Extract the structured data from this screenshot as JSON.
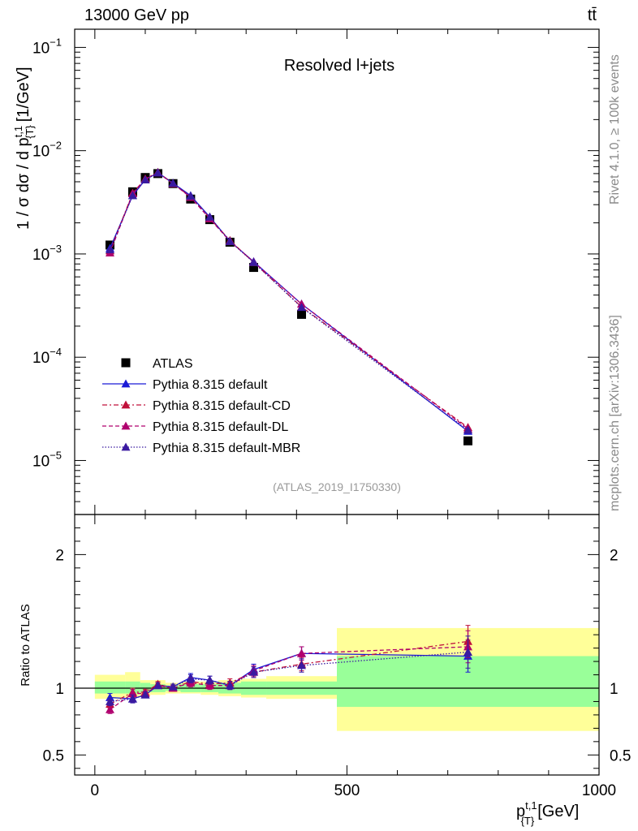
{
  "header": {
    "energy_label": "13000 GeV pp",
    "process_label": "tt̄",
    "side_rivet": "Rivet 4.1.0, ≥ 100k events",
    "side_mcplots": "mcplots.cern.ch [arXiv:1306.3436]"
  },
  "chart_data": {
    "type": "scatter",
    "title": "Resolved l+jets",
    "analysis_tag": "(ATLAS_2019_I1750330)",
    "xlabel_main": "p",
    "xlabel_sup": "t,1",
    "xlabel_sub": "{T}",
    "xlabel_unit": "[GeV]",
    "ylabel_main_prefix": "1 / σ dσ / d p",
    "ylabel_main_sup": "t,1",
    "ylabel_main_sub": "{T}",
    "ylabel_main_unit": "[1/GeV]",
    "ylabel_ratio": "Ratio to ATLAS",
    "xlim": [
      -40,
      1000
    ],
    "ylim_main": [
      3e-06,
      0.15
    ],
    "ylim_ratio": [
      0.35,
      2.3
    ],
    "yscale_main": "log",
    "x_ticks": [
      {
        "value": 0,
        "label": "0"
      },
      {
        "value": 500,
        "label": "500"
      },
      {
        "value": 1000,
        "label": "1000"
      }
    ],
    "y_ticks_main": [
      {
        "value": 0.1,
        "base": "10",
        "exp": "−1"
      },
      {
        "value": 0.01,
        "base": "10",
        "exp": "−2"
      },
      {
        "value": 0.001,
        "base": "10",
        "exp": "−3"
      },
      {
        "value": 0.0001,
        "base": "10",
        "exp": "−4"
      },
      {
        "value": 1e-05,
        "base": "10",
        "exp": "−5"
      }
    ],
    "y_ticks_ratio": [
      {
        "value": 0.5,
        "label": "0.5"
      },
      {
        "value": 1,
        "label": "1"
      },
      {
        "value": 2,
        "label": "2"
      }
    ],
    "bins": [
      {
        "lo": 0,
        "hi": 60,
        "x": 30
      },
      {
        "lo": 60,
        "hi": 90,
        "x": 75
      },
      {
        "lo": 90,
        "hi": 110,
        "x": 100
      },
      {
        "lo": 110,
        "hi": 140,
        "x": 125
      },
      {
        "lo": 140,
        "hi": 170,
        "x": 155
      },
      {
        "lo": 170,
        "hi": 210,
        "x": 190
      },
      {
        "lo": 210,
        "hi": 245,
        "x": 228
      },
      {
        "lo": 245,
        "hi": 290,
        "x": 268
      },
      {
        "lo": 290,
        "hi": 340,
        "x": 315
      },
      {
        "lo": 340,
        "hi": 480,
        "x": 410
      },
      {
        "lo": 480,
        "hi": 1000,
        "x": 740
      }
    ],
    "data": {
      "name": "ATLAS",
      "values": [
        0.00122,
        0.004,
        0.0055,
        0.006,
        0.0048,
        0.0034,
        0.00215,
        0.0013,
        0.00074,
        0.00026,
        1.55e-05
      ],
      "band_stat": [
        [
          0.96,
          1.05
        ],
        [
          0.96,
          1.05
        ],
        [
          0.97,
          1.04
        ],
        [
          0.97,
          1.03
        ],
        [
          0.98,
          1.02
        ],
        [
          0.97,
          1.03
        ],
        [
          0.97,
          1.03
        ],
        [
          0.96,
          1.04
        ],
        [
          0.95,
          1.05
        ],
        [
          0.95,
          1.05
        ],
        [
          0.86,
          1.24
        ]
      ],
      "band_total": [
        [
          0.92,
          1.1
        ],
        [
          0.93,
          1.12
        ],
        [
          0.94,
          1.06
        ],
        [
          0.95,
          1.06
        ],
        [
          0.96,
          1.04
        ],
        [
          0.96,
          1.05
        ],
        [
          0.95,
          1.05
        ],
        [
          0.94,
          1.06
        ],
        [
          0.93,
          1.07
        ],
        [
          0.92,
          1.09
        ],
        [
          0.68,
          1.45
        ]
      ],
      "color": "#000000"
    },
    "series": [
      {
        "name": "Pythia 8.315 default",
        "color": "#1a1ad6",
        "dash": "",
        "ratios": [
          0.93,
          0.92,
          0.95,
          1.02,
          1.01,
          1.08,
          1.06,
          1.02,
          1.14,
          1.26,
          1.24
        ],
        "ratio_err": [
          0.03,
          0.03,
          0.02,
          0.02,
          0.02,
          0.03,
          0.03,
          0.03,
          0.04,
          0.05,
          0.12
        ]
      },
      {
        "name": "Pythia 8.315 default-CD",
        "color": "#c0103a",
        "dash": "6,3,2,3",
        "ratios": [
          0.88,
          0.97,
          0.97,
          1.03,
          1.0,
          1.05,
          1.03,
          1.04,
          1.12,
          1.18,
          1.35
        ],
        "ratio_err": [
          0.03,
          0.03,
          0.02,
          0.02,
          0.02,
          0.03,
          0.03,
          0.03,
          0.04,
          0.05,
          0.12
        ]
      },
      {
        "name": "Pythia 8.315 default-DL",
        "color": "#b0006e",
        "dash": "5,3",
        "ratios": [
          0.84,
          0.96,
          0.96,
          1.02,
          1.0,
          1.04,
          1.02,
          1.02,
          1.13,
          1.26,
          1.31
        ],
        "ratio_err": [
          0.03,
          0.03,
          0.02,
          0.02,
          0.02,
          0.03,
          0.03,
          0.03,
          0.04,
          0.05,
          0.12
        ]
      },
      {
        "name": "Pythia 8.315 default-MBR",
        "color": "#3a1aa0",
        "dash": "1.5,2",
        "ratios": [
          0.9,
          0.92,
          0.95,
          1.02,
          1.01,
          1.07,
          1.06,
          1.02,
          1.12,
          1.17,
          1.27
        ],
        "ratio_err": [
          0.03,
          0.03,
          0.02,
          0.02,
          0.02,
          0.03,
          0.03,
          0.03,
          0.04,
          0.05,
          0.12
        ]
      }
    ],
    "legend_position": "bottom-left",
    "colors": {
      "band_total": "#ffff99",
      "band_stat": "#99ff99"
    }
  }
}
